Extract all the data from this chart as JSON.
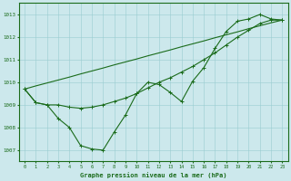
{
  "title": "Graphe pression niveau de la mer (hPa)",
  "hours": [
    0,
    1,
    2,
    3,
    4,
    5,
    6,
    7,
    8,
    9,
    10,
    11,
    12,
    13,
    14,
    15,
    16,
    17,
    18,
    19,
    20,
    21,
    22,
    23
  ],
  "line_jagged": [
    1009.7,
    1009.1,
    1009.0,
    1008.4,
    1008.0,
    1007.2,
    1007.05,
    1007.0,
    1007.8,
    1008.55,
    1009.5,
    1010.0,
    1009.9,
    1009.55,
    1009.15,
    1010.05,
    1010.65,
    1011.5,
    1012.25,
    1012.7,
    1012.8,
    1013.0,
    1012.8,
    1012.75
  ],
  "line_smooth": [
    1009.7,
    1009.1,
    1009.0,
    1009.0,
    1008.9,
    1008.85,
    1008.9,
    1009.0,
    1009.15,
    1009.3,
    1009.5,
    1009.75,
    1010.0,
    1010.2,
    1010.45,
    1010.7,
    1011.0,
    1011.3,
    1011.65,
    1012.0,
    1012.3,
    1012.6,
    1012.75,
    1012.75
  ],
  "line_linear": [
    1009.7,
    1009.84,
    1009.97,
    1010.1,
    1010.23,
    1010.37,
    1010.5,
    1010.63,
    1010.77,
    1010.9,
    1011.03,
    1011.17,
    1011.3,
    1011.43,
    1011.57,
    1011.7,
    1011.83,
    1011.97,
    1012.1,
    1012.23,
    1012.37,
    1012.5,
    1012.63,
    1012.75
  ],
  "line_color": "#1a6b1a",
  "bg_color": "#cce8ec",
  "grid_color": "#99ccd0",
  "text_color": "#1a6b1a",
  "ylim": [
    1006.5,
    1013.5
  ],
  "yticks": [
    1007,
    1008,
    1009,
    1010,
    1011,
    1012,
    1013
  ],
  "xlim": [
    -0.5,
    23.5
  ],
  "xticks": [
    0,
    1,
    2,
    3,
    4,
    5,
    6,
    7,
    8,
    9,
    10,
    11,
    12,
    13,
    14,
    15,
    16,
    17,
    18,
    19,
    20,
    21,
    22,
    23
  ]
}
